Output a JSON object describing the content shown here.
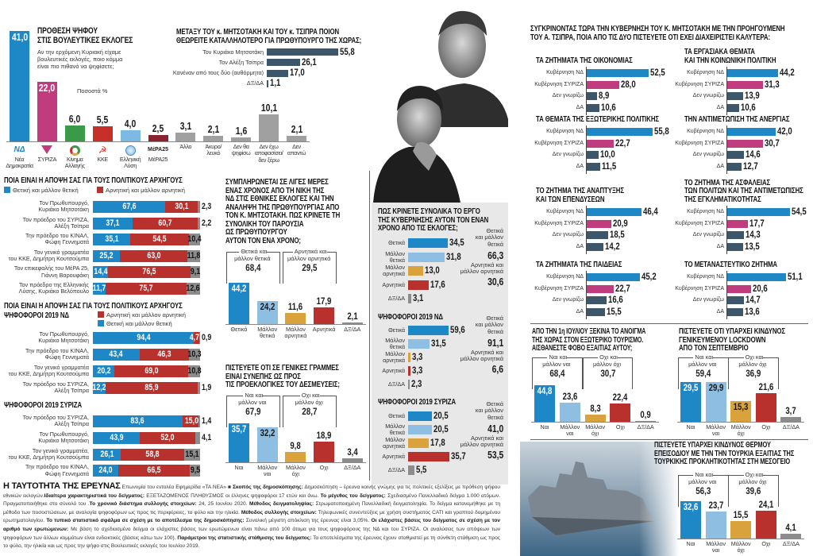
{
  "colors": {
    "positive": "#1e88c7",
    "somewhat_positive": "#8fbee3",
    "somewhat_negative": "#d9a23c",
    "negative": "#b8312d",
    "dk": "#8c8c8c",
    "slate": "#3e5669",
    "syriza": "#c13c7e",
    "kinal": "#3b9a48",
    "kke": "#c72f2a",
    "elliniki_lysi": "#7cb9e3",
    "mera25": "#8a2230",
    "other": "#a0a0a0"
  },
  "comparison": {
    "title": "ΣΥΓΚΡΙΝΟΝΤΑΣ ΤΩΡΑ ΤΗΝ ΚΥΒΕΡΝΗΣΗ ΤΟΥ Κ. ΜΗΤΣΟΤΑΚΗ ΜΕ ΤΗΝ ΠΡΟΗΓΟΥΜΕΝΗ\nΤΟΥ Α. ΤΣΙΠΡΑ, ΠΟΙΑ ΑΠΟ ΤΙΣ ΔΥΟ ΠΙΣΤΕΥΕΤΕ ΟΤΙ ΕΧΕΙ ΔΙΑΧΕΙΡΙΣΤΕΙ ΚΑΛΥΤΕΡΑ:"
  },
  "chart_data": [
    {
      "type": "bar",
      "title": "ΠΡΟΘΕΣΗ ΨΗΦΟΥ\nΣΤΙΣ ΒΟΥΛΕΥΤΙΚΕΣ ΕΚΛΟΓΕΣ",
      "question": "Αν την ερχόμενη Κυριακή είχαμε\nβουλευτικές εκλογές, ποιο κόμμα\nείναι πιο πιθανό να ψηφίσετε;",
      "unit_note": "Ποσοστά %",
      "categories": [
        "Νέα\nΔημοκρατία",
        "ΣΥΡΙΖΑ",
        "Κίνημα\nΑλλαγής",
        "ΚΚΕ",
        "Ελληνική\nΛύση",
        "ΜέΡΑ25",
        "Άλλο",
        "Άκυρο/\nλευκό",
        "Δεν θα\nψηφίσω",
        "Δεν έχω\nαποφασίσει/\nδεν ξέρω",
        "Δεν\nαπαντώ"
      ],
      "values": [
        41.0,
        22.0,
        6.0,
        5.5,
        4.0,
        2.5,
        3.1,
        2.1,
        1.6,
        10.1,
        2.1
      ],
      "colors": [
        "#1e88c7",
        "#c13c7e",
        "#3b9a48",
        "#c72f2a",
        "#7cb9e3",
        "#8a2230",
        "#a0a0a0",
        "#a0a0a0",
        "#a0a0a0",
        "#a0a0a0",
        "#a0a0a0"
      ],
      "icons": [
        "nd-logo",
        "syriza-logo",
        "kinal-logo",
        "kke-logo",
        "elliniki-lysi-logo",
        "mera25-logo",
        null,
        null,
        null,
        null,
        null
      ],
      "logo_text": {
        "nd": "ΝΔ",
        "mera25": "ΜέΡΑ25"
      }
    },
    {
      "type": "hbar",
      "title": "ΜΕΤΑΞΥ ΤΟΥ κ. ΜΗΤΣΟΤΑΚΗ ΚΑΙ ΤΟΥ κ. ΤΣΙΠΡΑ ΠΟΙΟΝ\nΘΕΩΡΕΙΤΕ ΚΑΤΑΛΛΗΛΟΤΕΡΟ ΓΙΑ ΠΡΩΘΥΠΟΥΡΓΟ ΤΗΣ ΧΩΡΑΣ;",
      "categories": [
        "Τον Κυριάκο Μητσοτάκη",
        "Τον Αλέξη Τσίπρα",
        "Κανέναν από τους δύο (αυθόρμητα)",
        "ΔΞ/ΔΑ"
      ],
      "values": [
        55.8,
        26.1,
        17.0,
        1.1
      ],
      "colors": [
        "#3e5669",
        "#3e5669",
        "#3e5669",
        "#3e5669"
      ]
    },
    {
      "type": "stacked-hbar",
      "title": "ΠΟΙΑ ΕΙΝΑΙ Η ΑΠΟΨΗ ΣΑΣ ΓΙΑ ΤΟΥΣ ΠΟΛΙΤΙΚΟΥΣ ΑΡΧΗΓΟΥΣ",
      "legend": [
        "Θετική και μάλλον θετική",
        "Αρνητική και μάλλον αρνητική"
      ],
      "rows": [
        {
          "label": "Τον Πρωθυπουργό,\nΚυριάκο Μητσοτάκη",
          "values": [
            67.6,
            30.1,
            2.3
          ]
        },
        {
          "label": "Τον πρόεδρο του ΣΥΡΙΖΑ,\nΑλέξη Τσίπρα",
          "values": [
            37.1,
            60.7,
            2.2
          ]
        },
        {
          "label": "Την πρόεδρο του ΚΙΝΑΛ,\nΦώφη Γεννηματά",
          "values": [
            35.1,
            54.5,
            10.4
          ]
        },
        {
          "label": "Τον γενικό γραμματέα\nτου ΚΚΕ, Δημήτρη Κουτσούμπα",
          "values": [
            25.2,
            63.0,
            11.8
          ]
        },
        {
          "label": "Τον επικεφαλής του ΜέΡΑ 25,\nΓιάννη Βαρουφάκη",
          "values": [
            14.4,
            76.5,
            9.1
          ]
        },
        {
          "label": "Τον πρόεδρο της Ελληνικής\nΛύσης, Κυριάκο Βελόπουλο",
          "values": [
            11.7,
            75.7,
            12.6
          ]
        }
      ]
    },
    {
      "type": "stacked-hbar",
      "title": "ΠΟΙΑ ΕΙΝΑΙ Η ΑΠΟΨΗ ΣΑΣ ΓΙΑ ΤΟΥΣ ΠΟΛΙΤΙΚΟΥΣ ΑΡΧΗΓΟΥΣ",
      "subtitle": "ΨΗΦΟΦΟΡΟΙ 2019 ΝΔ",
      "legend": [
        "Θετική και μάλλον θετική",
        "Αρνητική και μάλλον αρνητική"
      ],
      "rows": [
        {
          "label": "Τον Πρωθυπουργό,\nΚυριάκο Μητσοτάκη",
          "values": [
            94.4,
            4.7,
            0.9
          ]
        },
        {
          "label": "Την πρόεδρο του ΚΙΝΑΛ,\nΦώφη Γεννηματά",
          "values": [
            43.4,
            46.3,
            10.3
          ]
        },
        {
          "label": "Τον γενικό γραμματέα\nτου ΚΚΕ, Δημήτρη Κουτσούμπα",
          "values": [
            20.2,
            69.0,
            10.8
          ]
        },
        {
          "label": "Τον πρόεδρο του ΣΥΡΙΖΑ,\nΑλέξη Τσίπρα",
          "values": [
            12.2,
            85.9,
            1.9
          ]
        }
      ]
    },
    {
      "type": "stacked-hbar",
      "subtitle": "ΨΗΦΟΦΟΡΟΙ 2019 ΣΥΡΙΖΑ",
      "rows": [
        {
          "label": "Τον πρόεδρο του ΣΥΡΙΖΑ,\nΑλέξη Τσίπρα",
          "values": [
            83.6,
            15.0,
            1.4
          ]
        },
        {
          "label": "Τον Πρωθυπουργό,\nΚυριάκο Μητσοτάκη",
          "values": [
            43.9,
            52.0,
            4.1
          ]
        },
        {
          "label": "Τον γενικό γραμματέα,\nτου ΚΚΕ, Δημήτρη Κουτσούμπα",
          "values": [
            26.1,
            58.8,
            15.1
          ]
        },
        {
          "label": "Την πρόεδρο του ΚΙΝΑΛ,\nΦώφη Γεννηματά",
          "values": [
            24.0,
            66.5,
            9.5
          ]
        }
      ]
    },
    {
      "type": "bar",
      "title": "ΣΥΜΠΛΗΡΩΝΕΤΑΙ ΣΕ ΛΙΓΕΣ ΜΕΡΕΣ\nΕΝΑΣ ΧΡΟΝΟΣ ΑΠΟ ΤΗ ΝΙΚΗ ΤΗΣ\nΝΔ ΣΤΙΣ ΕΘΝΙΚΕΣ ΕΚΛΟΓΕΣ ΚΑΙ ΤΗΝ\nΑΝΑΛΗΨΗ ΤΗΣ ΠΡΩΘΥΠΟΥΡΓΙΑΣ ΑΠΟ\nΤΟΝ Κ. ΜΗΤΣΟΤΑΚΗ. ΠΩΣ ΚΡΙΝΕΤΕ ΤΗ\nΣΥΝΟΛΙΚΗ ΤΟΥ ΠΑΡΟΥΣΙΑ\nΩΣ ΠΡΩΘΥΠΟΥΡΓΟΥ\nΑΥΤΟΝ ΤΟΝ ΕΝΑ ΧΡΟΝΟ;",
      "categories": [
        "Θετικά",
        "Μάλλον\nθετικά",
        "Μάλλον\nαρνητικά",
        "Αρνητικά",
        "ΔΞ/ΔΑ"
      ],
      "values": [
        44.2,
        24.2,
        11.6,
        17.9,
        2.1
      ],
      "colors": [
        "#1e88c7",
        "#8fbee3",
        "#d9a23c",
        "#b8312d",
        "#8c8c8c"
      ],
      "groups": [
        {
          "label": "Θετικά και\nμάλλον θετικά",
          "total": 68.4,
          "from": 0,
          "to": 1
        },
        {
          "label": "Αρνητικά και\nμάλλον αρνητικά",
          "total": 29.5,
          "from": 2,
          "to": 3
        }
      ]
    },
    {
      "type": "bar",
      "title": "ΠΙΣΤΕΥΕΤΕ ΟΤΙ ΣΕ ΓΕΝΙΚΕΣ ΓΡΑΜΜΕΣ\nΕΙΝΑΙ ΣΥΝΕΠΗΣ ΩΣ ΠΡΟΣ\nΤΙΣ ΠΡΟΕΚΛΟΓΙΚΕΣ ΤΟΥ ΔΕΣΜΕΥΣΕΙΣ;",
      "categories": [
        "Ναι",
        "Μάλλον\nναι",
        "Μάλλον\nόχι",
        "Οχι",
        "ΔΞ/ΔΑ"
      ],
      "values": [
        35.7,
        32.2,
        9.8,
        18.9,
        3.4
      ],
      "colors": [
        "#1e88c7",
        "#8fbee3",
        "#d9a23c",
        "#b8312d",
        "#8c8c8c"
      ],
      "groups": [
        {
          "label": "Ναι και\nμάλλον ναι",
          "total": 67.9,
          "from": 0,
          "to": 1
        },
        {
          "label": "Οχι και\nμάλλον όχι",
          "total": 28.7,
          "from": 2,
          "to": 3
        }
      ]
    },
    {
      "type": "hbar",
      "title": "ΠΩΣ ΚΡΙΝΕΤΕ ΣΥΝΟΛΙΚΑ ΤΟ ΕΡΓΟ\nΤΗΣ ΚΥΒΕΡΝΗΣΗΣ ΑΥΤΟΝ ΤΟΝ ΕΝΑΝ\nΧΡΟΝΟ ΑΠΟ ΤΙΣ ΕΚΛΟΓΕΣ;",
      "categories": [
        "Θετικά",
        "Μάλλον\nθετικά",
        "Μάλλον\nαρνητικά",
        "Αρνητικά",
        "ΔΞ/ΔΑ"
      ],
      "values": [
        34.5,
        31.8,
        13.0,
        17.6,
        3.1
      ],
      "colors": [
        "#1e88c7",
        "#8fbee3",
        "#d9a23c",
        "#b8312d",
        "#8c8c8c"
      ],
      "summary": [
        {
          "label": "Θετικά\nκαι μάλλον\nθετικά",
          "total": 66.3
        },
        {
          "label": "Αρνητικά και\nμάλλον αρνητικά",
          "total": 30.6
        }
      ]
    },
    {
      "type": "hbar",
      "subtitle": "ΨΗΦΟΦΟΡΟΙ 2019 ΝΔ",
      "categories": [
        "Θετικά",
        "Μάλλον\nθετικά",
        "Μάλλον\nαρνητικά",
        "Αρνητικά",
        "ΔΞ/ΔΑ"
      ],
      "values": [
        59.6,
        31.5,
        3.3,
        3.3,
        2.3
      ],
      "colors": [
        "#1e88c7",
        "#8fbee3",
        "#d9a23c",
        "#b8312d",
        "#8c8c8c"
      ],
      "summary": [
        {
          "label": "Θετικά\nκαι μάλλον\nθετικά",
          "total": 91.1
        },
        {
          "label": "Αρνητικά και\nμάλλον αρνητικά",
          "total": 6.6
        }
      ]
    },
    {
      "type": "hbar",
      "subtitle": "ΨΗΦΟΦΟΡΟΙ 2019 ΣΥΡΙΖΑ",
      "categories": [
        "Θετικά",
        "Μάλλον\nθετικά",
        "Μάλλον\nαρνητικά",
        "Αρνητικά",
        "ΔΞ/ΔΑ"
      ],
      "values": [
        20.5,
        20.5,
        17.8,
        35.7,
        5.5
      ],
      "colors": [
        "#1e88c7",
        "#8fbee3",
        "#d9a23c",
        "#b8312d",
        "#8c8c8c"
      ],
      "summary": [
        {
          "label": "Θετικά\nκαι μάλλον\nθετικά",
          "total": 41.0
        },
        {
          "label": "Αρνητικά και\nμάλλον αρνητικά",
          "total": 53.5
        }
      ]
    },
    {
      "type": "hbar",
      "title": "ΤΑ ΖΗΤΗΜΑΤΑ ΤΗΣ ΟΙΚΟΝΟΜΙΑΣ",
      "categories": [
        "Κυβέρνηση ΝΔ",
        "Κυβέρνηση ΣΥΡΙΖΑ",
        "Δεν γνωρίζω",
        "ΔΑ"
      ],
      "values": [
        52.5,
        28.0,
        8.9,
        10.6
      ],
      "colors": [
        "#1e88c7",
        "#c13c7e",
        "#3e5669",
        "#3e5669"
      ]
    },
    {
      "type": "hbar",
      "title": "ΤΑ ΕΡΓΑΣΙΑΚΑ ΘΕΜΑΤΑ\nΚΑΙ ΤΗΝ ΚΟΙΝΩΝΙΚΗ ΠΟΛΙΤΙΚΗ",
      "categories": [
        "Κυβέρνηση ΝΔ",
        "Κυβέρνηση ΣΥΡΙΖΑ",
        "Δεν γνωρίζω",
        "ΔΑ"
      ],
      "values": [
        44.2,
        31.3,
        13.9,
        10.6
      ],
      "colors": [
        "#1e88c7",
        "#c13c7e",
        "#3e5669",
        "#3e5669"
      ]
    },
    {
      "type": "hbar",
      "title": "ΤΑ ΘΕΜΑΤΑ ΤΗΣ ΕΞΩΤΕΡΙΚΗΣ ΠΟΛΙΤΙΚΗΣ",
      "categories": [
        "Κυβέρνηση ΝΔ",
        "Κυβέρνηση ΣΥΡΙΖΑ",
        "Δεν γνωρίζω",
        "ΔΑ"
      ],
      "values": [
        55.8,
        22.7,
        10.0,
        11.5
      ],
      "colors": [
        "#1e88c7",
        "#c13c7e",
        "#3e5669",
        "#3e5669"
      ]
    },
    {
      "type": "hbar",
      "title": "ΤΗΝ ΑΝΤΙΜΕΤΩΠΙΣΗ ΤΗΣ ΑΝΕΡΓΙΑΣ",
      "categories": [
        "Κυβέρνηση ΝΔ",
        "Κυβέρνηση ΣΥΡΙΖΑ",
        "Δεν γνωρίζω",
        "ΔΑ"
      ],
      "values": [
        42.0,
        30.7,
        14.6,
        12.7
      ],
      "colors": [
        "#1e88c7",
        "#c13c7e",
        "#3e5669",
        "#3e5669"
      ]
    },
    {
      "type": "hbar",
      "title": "ΤΟ ΖΗΤΗΜΑ ΤΗΣ ΑΝΑΠΤΥΞΗΣ\nΚΑΙ ΤΩΝ ΕΠΕΝΔΥΣΕΩΝ",
      "categories": [
        "Κυβέρνηση ΝΔ",
        "Κυβέρνηση ΣΥΡΙΖΑ",
        "Δεν γνωρίζω",
        "ΔΑ"
      ],
      "values": [
        46.4,
        20.9,
        18.5,
        14.2
      ],
      "colors": [
        "#1e88c7",
        "#c13c7e",
        "#3e5669",
        "#3e5669"
      ]
    },
    {
      "type": "hbar",
      "title": "ΤΟ ΖΗΤΗΜΑ ΤΗΣ ΑΣΦΑΛΕΙΑΣ\nΤΩΝ ΠΟΛΙΤΩΝ ΚΑΙ ΤΗΣ ΑΝΤΙΜΕΤΩΠΙΣΗΣ\nΤΗΣ ΕΓΚΛΗΜΑΤΙΚΟΤΗΤΑΣ",
      "categories": [
        "Κυβέρνηση ΝΔ",
        "Κυβέρνηση ΣΥΡΙΖΑ",
        "Δεν γνωρίζω",
        "ΔΑ"
      ],
      "values": [
        54.5,
        17.7,
        14.3,
        13.5
      ],
      "colors": [
        "#1e88c7",
        "#c13c7e",
        "#3e5669",
        "#3e5669"
      ]
    },
    {
      "type": "hbar",
      "title": "ΤΑ ΖΗΤΗΜΑΤΑ ΤΗΣ ΠΑΙΔΕΙΑΣ",
      "categories": [
        "Κυβέρνηση ΝΔ",
        "Κυβέρνηση ΣΥΡΙΖΑ",
        "Δεν γνωρίζω",
        "ΔΑ"
      ],
      "values": [
        45.2,
        22.7,
        16.6,
        15.5
      ],
      "colors": [
        "#1e88c7",
        "#c13c7e",
        "#3e5669",
        "#3e5669"
      ]
    },
    {
      "type": "hbar",
      "title": "ΤΟ ΜΕΤΑΝΑΣΤΕΥΤΙΚΟ ΖΗΤΗΜΑ",
      "categories": [
        "Κυβέρνηση ΝΔ",
        "Κυβέρνηση ΣΥΡΙΖΑ",
        "Δεν γνωρίζω",
        "ΔΑ"
      ],
      "values": [
        51.1,
        20.6,
        14.7,
        13.6
      ],
      "colors": [
        "#1e88c7",
        "#c13c7e",
        "#3e5669",
        "#3e5669"
      ]
    },
    {
      "type": "bar",
      "title": "ΑΠΟ ΤΗΝ 1η ΙΟΥΛΙΟΥ ΞΕΚΙΝΑ ΤΟ ΑΝΟΙΓΜΑ\nΤΗΣ ΧΩΡΑΣ ΣΤΟΝ ΕΞΩΤΕΡΙΚΟ ΤΟΥΡΙΣΜΟ.\nΑΙΣΘΑΝΕΣΤΕ ΦΟΒΟ ΕΞΑΙΤΙΑΣ ΑΥΤΟΥ;",
      "categories": [
        "Ναι",
        "Μάλλον\nναι",
        "Μάλλον\nόχι",
        "Οχι",
        "ΔΞ/ΔΑ"
      ],
      "values": [
        44.8,
        23.6,
        8.3,
        22.4,
        0.9
      ],
      "colors": [
        "#1e88c7",
        "#8fbee3",
        "#d9a23c",
        "#b8312d",
        "#8c8c8c"
      ],
      "groups": [
        {
          "label": "Ναι και\nμάλλον ναι",
          "total": 68.4,
          "from": 0,
          "to": 1
        },
        {
          "label": "Οχι και\nμάλλον όχι",
          "total": 30.7,
          "from": 2,
          "to": 3
        }
      ]
    },
    {
      "type": "bar",
      "title": "ΠΙΣΤΕΥΕΤΕ ΟΤΙ ΥΠΑΡΧΕΙ ΚΙΝΔΥΝΟΣ\nΓΕΝΙΚΕΥΜΕΝΟΥ LOCKDOWN\nΑΠΟ ΤΟΝ ΣΕΠΤΕΜΒΡΙΟ",
      "categories": [
        "Ναι",
        "Μάλλον\nναι",
        "Μάλλον\nόχι",
        "Οχι",
        "ΔΞ/ΔΑ"
      ],
      "values": [
        29.5,
        29.9,
        15.3,
        21.6,
        3.7
      ],
      "colors": [
        "#1e88c7",
        "#8fbee3",
        "#d9a23c",
        "#b8312d",
        "#8c8c8c"
      ],
      "groups": [
        {
          "label": "Ναι και\nμάλλον ναι",
          "total": 59.4,
          "from": 0,
          "to": 1
        },
        {
          "label": "Οχι και\nμάλλον όχι",
          "total": 36.9,
          "from": 2,
          "to": 3
        }
      ]
    },
    {
      "type": "bar",
      "title": "ΠΙΣΤΕΥΕΤΕ ΥΠΑΡΧΕΙ ΚΙΝΔΥΝΟΣ ΘΕΡΜΟΥ\nΕΠΕΙΣΟΔΙΟΥ ΜΕ ΤΗΝ ΤΗΝ ΤΟΥΡΚΙΑ ΕΞΑΙΤΙΑΣ ΤΗΣ\nΤΟΥΡΚΙΚΗΣ ΠΡΟΚΛΗΤΙΚΟΤΗΤΑΣ ΣΤΗ ΜΕΣΟΓΕΙΟ",
      "categories": [
        "Ναι",
        "Μάλλον\nναι",
        "Μάλλον\nόχι",
        "Οχι",
        "ΔΞ/ΔΑ"
      ],
      "values": [
        32.6,
        23.7,
        15.5,
        24.1,
        4.1
      ],
      "colors": [
        "#1e88c7",
        "#8fbee3",
        "#d9a23c",
        "#b8312d",
        "#8c8c8c"
      ],
      "groups": [
        {
          "label": "Ναι και\nμάλλον ναι",
          "total": 56.3,
          "from": 0,
          "to": 1
        },
        {
          "label": "Οχι και\nμάλλον όχι",
          "total": 39.6,
          "from": 2,
          "to": 3
        }
      ]
    }
  ],
  "footer": {
    "heading": "Η ΤΑΥΤΟΤΗΤΑ ΤΗΣ ΕΡΕΥΝΑΣ",
    "segments": [
      {
        "bold": false,
        "text": " Επωνυμία του εντολέα Εφημερίδα «ΤΑ ΝΕΑ» ■ "
      },
      {
        "bold": true,
        "text": "Σκοπός της δημοσκόπησης:"
      },
      {
        "bold": false,
        "text": " Δημοσκόπηση – έρευνα κοινής γνώμης για τις πολιτικές εξελίξεις με πρόθεση ψήφου εθνικών εκλογών."
      },
      {
        "bold": true,
        "text": "Ιδιαίτερα χαρακτηριστικά του δείγματος:"
      },
      {
        "bold": false,
        "text": " ΕΞΕΤΑΖΟΜΕΝΟΣ ΠΛΗΘΥΣΜΟΣ οι έλληνες ψηφοφόροι 17 ετών και άνω. "
      },
      {
        "bold": true,
        "text": "Το μέγεθος του δείγματος:"
      },
      {
        "bold": false,
        "text": " Σχεδιασμένο Πανελλαδικό δείγμα 1.000 ατόμων. Πραγματοποιήθηκε στο σύνολό του ."
      },
      {
        "bold": true,
        "text": "Το χρονικό διάστημα συλλογής στοιχείων:"
      },
      {
        "bold": false,
        "text": " 24, 25 Ιουνίου 2020. "
      },
      {
        "bold": true,
        "text": "Μέθοδος δειγματοληψίας:"
      },
      {
        "bold": false,
        "text": " Στρωματοποιημένη Πανελλαδική δειγματοληψία. Το δείγμα κατανεμήθηκε με τη μέθοδο των ποσοστώσεων, με αναλογία ψηφοφόρων ως προς τις περιφέρειες, το φύλο και την ηλικία. "
      },
      {
        "bold": true,
        "text": "Μέθοδος συλλογής στοιχείων:"
      },
      {
        "bold": false,
        "text": " Τηλεφωνικές συνεντεύξεις με χρήση συστήματος CATI και γραπτού δομημένου ερωτηματολογίου. "
      },
      {
        "bold": true,
        "text": "Το τυπικό στατιστικό σφάλμα σε σχέση με το αποτέλεσμα της δημοσκόπησης:"
      },
      {
        "bold": false,
        "text": " Συνολική μέγιστη απόκλιση της έρευνας είναι 3,05%. "
      },
      {
        "bold": true,
        "text": "Οι ελάχιστες βάσεις του δείγματος σε σχέση με τον αριθμό των ερωτώμενων:"
      },
      {
        "bold": false,
        "text": " Με βάση το σχεδιασμένο δείγμα οι ελάχιστες βάσεις των ερωτώμενων είναι πάνω από 100 άτομα για τους ψηφοφόρους της ΝΔ και του ΣΥΡΙΖΑ. Οι αναλύσεις των απόψεων των ψηφοφόρων των άλλων κομμάτων είναι ενδεικτικές (βάσεις κάτω των 100). "
      },
      {
        "bold": true,
        "text": "Παράμετροι της στατιστικής στάθμισης του δείγματος:"
      },
      {
        "bold": false,
        "text": " Τα αποτελέσματα της έρευνας έχουν σταθμιστεί με τη σύνθετη στάθμιση ως προς το φύλο, την ηλικία και ως προς την ψήφο στις Βουλευτικές εκλογές του Ιουλίου 2019."
      }
    ]
  }
}
